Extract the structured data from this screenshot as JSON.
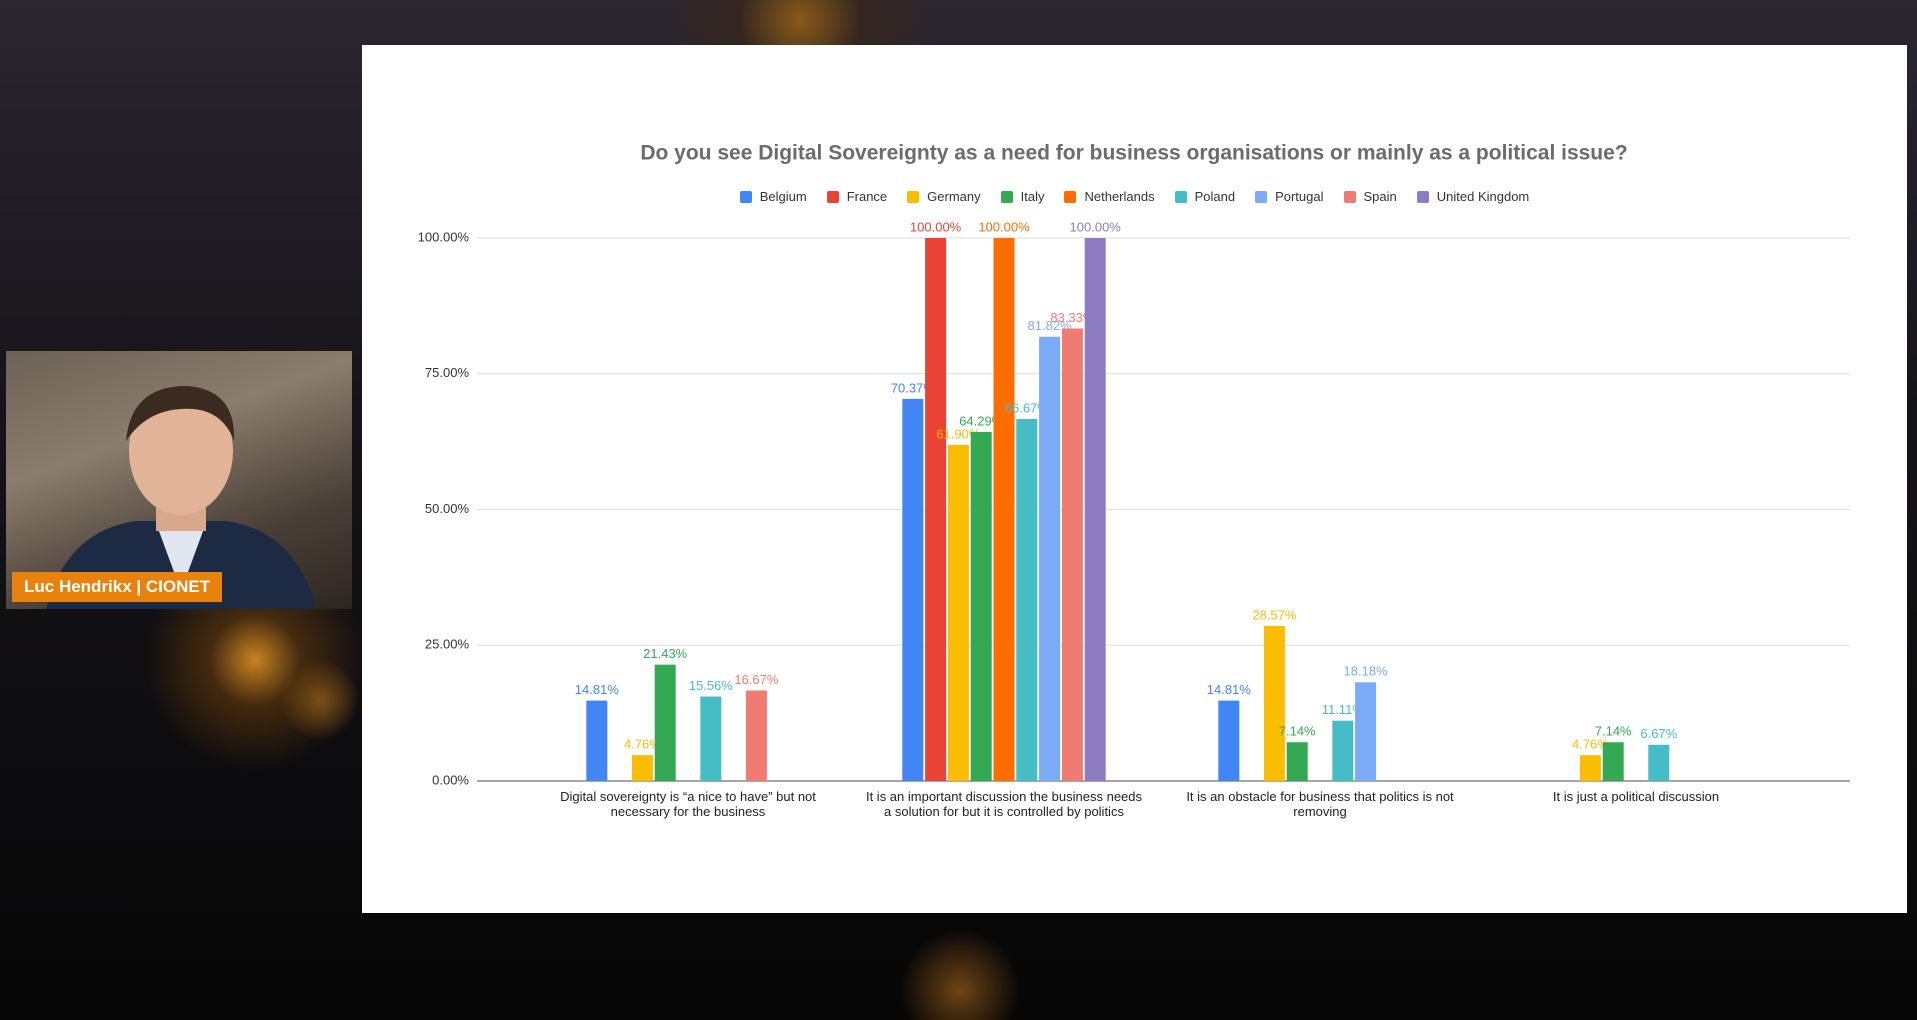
{
  "speaker": {
    "name": "Luc Hendrikx | CIONET"
  },
  "chart_data": {
    "type": "bar",
    "title": "Do you see Digital Sovereignty as a need for business organisations or mainly as a political issue?",
    "categories": [
      "Digital sovereignty is “a nice to have” but not necessary for the business",
      "It is an important discussion the business needs a solution for but it is controlled by politics",
      "It is an obstacle for business that politics is not removing",
      "It is just a political discussion"
    ],
    "series": [
      {
        "name": "Belgium",
        "color": "#4285f4",
        "values": [
          14.81,
          70.37,
          14.81,
          null
        ],
        "value_labels": [
          "14.81%",
          "70.37%",
          "14.81%",
          null
        ]
      },
      {
        "name": "France",
        "color": "#ea4335",
        "values": [
          null,
          100,
          null,
          null
        ],
        "value_labels": [
          null,
          "100.00%",
          null,
          null
        ]
      },
      {
        "name": "Germany",
        "color": "#fbbc04",
        "values": [
          4.76,
          61.9,
          28.57,
          4.76
        ],
        "value_labels": [
          "4.76%",
          "61.90%",
          "28.57%",
          "4.76%"
        ]
      },
      {
        "name": "Italy",
        "color": "#34a853",
        "values": [
          21.43,
          64.29,
          7.14,
          7.14
        ],
        "value_labels": [
          "21.43%",
          "64.29%",
          "7.14%",
          "7.14%"
        ]
      },
      {
        "name": "Netherlands",
        "color": "#ff6d01",
        "values": [
          null,
          100,
          null,
          null
        ],
        "value_labels": [
          null,
          "100.00%",
          null,
          null
        ]
      },
      {
        "name": "Poland",
        "color": "#46bdc6",
        "values": [
          15.56,
          66.67,
          11.11,
          6.67
        ],
        "value_labels": [
          "15.56%",
          "66.67%",
          "11.11%",
          "6.67%"
        ]
      },
      {
        "name": "Portugal",
        "color": "#7baaf7",
        "values": [
          null,
          81.82,
          18.18,
          null
        ],
        "value_labels": [
          null,
          "81.82%",
          "18.18%",
          null
        ]
      },
      {
        "name": "Spain",
        "color": "#f07b72",
        "values": [
          16.67,
          83.33,
          null,
          null
        ],
        "value_labels": [
          "16.67%",
          "83.33%",
          null,
          null
        ]
      },
      {
        "name": "United Kingdom",
        "color": "#8e7cc3",
        "values": [
          null,
          100,
          null,
          null
        ],
        "value_labels": [
          null,
          "100.00%",
          null,
          null
        ]
      }
    ],
    "ylim": [
      0,
      100
    ],
    "yticks": [
      {
        "value": 0,
        "label": "0.00%"
      },
      {
        "value": 25,
        "label": "25.00%"
      },
      {
        "value": 50,
        "label": "50.00%"
      },
      {
        "value": 75,
        "label": "75.00%"
      },
      {
        "value": 100,
        "label": "100.00%"
      }
    ],
    "grid": true,
    "legend": "top"
  }
}
